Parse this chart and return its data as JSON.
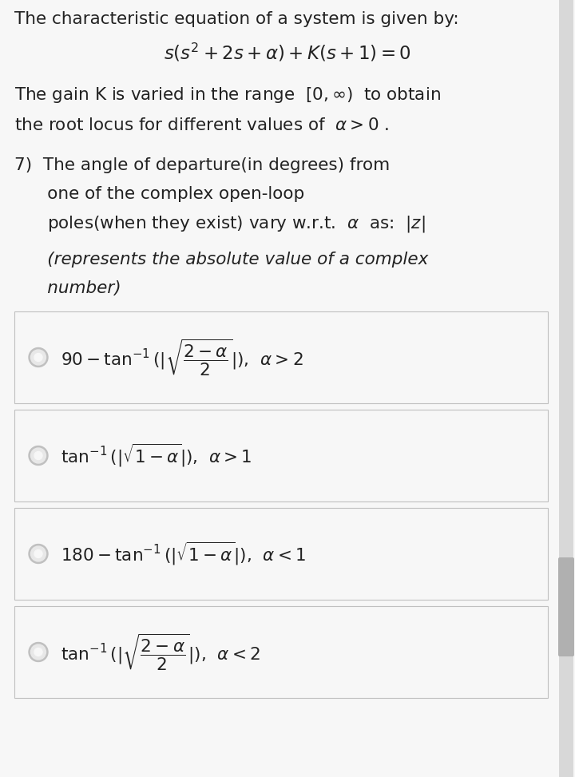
{
  "bg_color": "#f7f7f7",
  "box_bg": "#f7f7f7",
  "box_edge": "#c0c0c0",
  "text_color": "#222222",
  "radio_outer": "#c0c0c0",
  "radio_inner": "#f7f7f7",
  "scrollbar_bg": "#d8d8d8",
  "scrollbar_thumb": "#b0b0b0",
  "fig_width": 7.2,
  "fig_height": 9.73,
  "title_line1": "The characteristic equation of a system is given by:",
  "title_line2": "$s(s^2 + 2s + \\alpha) + K(s + 1) = 0$",
  "body_line1": "The gain K is varied in the range  $[0, \\infty)$  to obtain",
  "body_line2": "the root locus for different values of  $\\alpha > 0$ .",
  "q_prefix": "7)  The angle of departure(in degrees) from",
  "q_line2": "      one of the complex open-loop",
  "q_line3_plain": "      poles(when they exist) vary w.r.t. ",
  "q_line3_alpha": "$\\alpha$",
  "q_line3_rest": "  as:  $|z|$",
  "q_italic1": "(represents the absolute value of a complex",
  "q_italic2": "number)",
  "options": [
    "$90 - \\tan^{-1}(|\\sqrt{\\dfrac{2-\\alpha}{2}}|)$,  $\\alpha > 2$",
    "$\\tan^{-1}(|\\sqrt{1 - \\alpha}|)$,  $\\alpha > 1$",
    "$180 - \\tan^{-1}(|\\sqrt{1 - \\alpha}|)$,  $\\alpha < 1$",
    "$\\tan^{-1}(|\\sqrt{\\dfrac{2-\\alpha}{2}}|)$,  $\\alpha < 2$"
  ]
}
